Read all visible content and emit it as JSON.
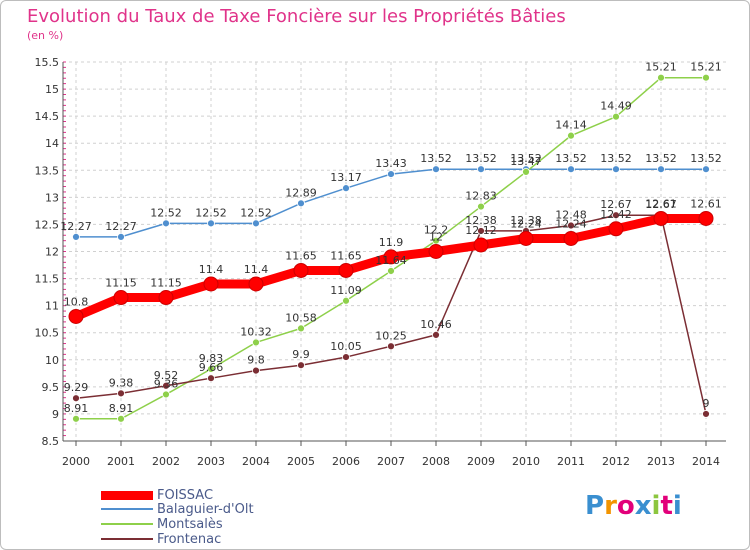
{
  "title": "Evolution du Taux de Taxe Foncière sur les Propriétés Bâties",
  "unit_label": "(en %)",
  "logo": {
    "text": "Proxiti",
    "colors": [
      "#3a8fd0",
      "#f29400",
      "#e2007a",
      "#3a8fd0",
      "#8cc63f",
      "#e2007a",
      "#3a8fd0"
    ]
  },
  "chart_data": {
    "type": "line",
    "x": [
      "2000",
      "2001",
      "2002",
      "2003",
      "2004",
      "2005",
      "2006",
      "2007",
      "2008",
      "2009",
      "2010",
      "2011",
      "2012",
      "2013",
      "2014"
    ],
    "ylim": [
      8.5,
      15.5
    ],
    "yticks": [
      "8.5",
      "9",
      "9.5",
      "10",
      "10.5",
      "11",
      "11.5",
      "12",
      "12.5",
      "13",
      "13.5",
      "14",
      "14.5",
      "15",
      "15.5"
    ],
    "grid": true,
    "legend_position": "bottom-left",
    "series": [
      {
        "name": "FOISSAC",
        "color": "#ff0000",
        "values": [
          10.8,
          11.15,
          11.15,
          11.4,
          11.4,
          11.65,
          11.65,
          11.9,
          12.0,
          12.12,
          12.24,
          12.24,
          12.42,
          12.61,
          12.61
        ],
        "labels": [
          "10.8",
          "11.15",
          "11.15",
          "11.4",
          "11.4",
          "11.65",
          "11.65",
          "11.9",
          "12",
          "12.12",
          "12.24",
          "12.24",
          "12.42",
          "12.61",
          "12.61"
        ]
      },
      {
        "name": "Balaguier-d'Olt",
        "color": "#4f8fcf",
        "values": [
          12.27,
          12.27,
          12.52,
          12.52,
          12.52,
          12.89,
          13.17,
          13.43,
          13.52,
          13.52,
          13.52,
          13.52,
          13.52,
          13.52,
          13.52
        ],
        "labels": [
          "12.27",
          "12.27",
          "12.52",
          "12.52",
          "12.52",
          "12.89",
          "13.17",
          "13.43",
          "13.52",
          "13.52",
          "13.52",
          "13.52",
          "13.52",
          "13.52",
          "13.52"
        ]
      },
      {
        "name": "Montsalès",
        "color": "#8ed04a",
        "values": [
          8.91,
          8.91,
          9.36,
          9.83,
          10.32,
          10.58,
          11.09,
          11.64,
          12.2,
          12.83,
          13.47,
          14.14,
          14.49,
          15.21,
          15.21
        ],
        "labels": [
          "8.91",
          "8.91",
          "9.36",
          "9.83",
          "10.32",
          "10.58",
          "11.09",
          "11.64",
          "12.2",
          "12.83",
          "13.47",
          "14.14",
          "14.49",
          "15.21",
          "15.21"
        ]
      },
      {
        "name": "Frontenac",
        "color": "#7b2e34",
        "values": [
          9.29,
          9.38,
          9.52,
          9.66,
          9.8,
          9.9,
          10.05,
          10.25,
          10.46,
          12.38,
          12.38,
          12.48,
          12.67,
          12.67,
          9.0
        ],
        "labels": [
          "9.29",
          "9.38",
          "9.52",
          "9.66",
          "9.8",
          "9.9",
          "10.05",
          "10.25",
          "10.46",
          "12.38",
          "12.38",
          "12.48",
          "12.67",
          "12.67",
          "9"
        ]
      }
    ]
  }
}
